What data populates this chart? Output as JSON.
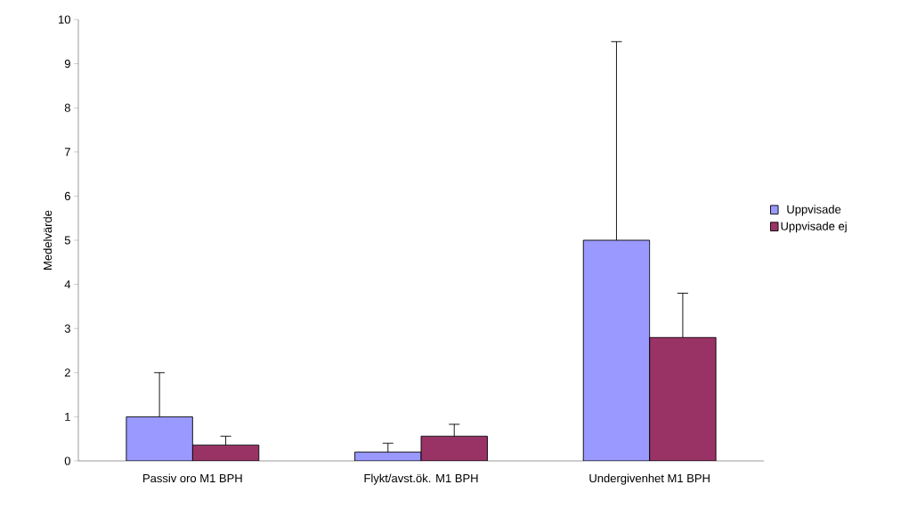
{
  "chart_data": {
    "type": "bar",
    "ylabel": "Medelvärde",
    "categories": [
      "Passiv oro M1 BPH",
      "Flykt/avst.ök. M1 BPH",
      "Undergivenhet M1 BPH"
    ],
    "series": [
      {
        "name": "Uppvisade",
        "color": "#9999ff",
        "values": [
          1.0,
          0.2,
          5.0
        ],
        "errors": [
          [
            1.0,
            2.0
          ],
          [
            0.2,
            0.4
          ],
          [
            5.0,
            9.5
          ]
        ]
      },
      {
        "name": "Uppvisade ej",
        "color": "#993366",
        "values": [
          0.36,
          0.56,
          2.8
        ],
        "errors": [
          [
            0.36,
            0.56
          ],
          [
            0.56,
            0.83
          ],
          [
            2.8,
            3.8
          ]
        ]
      }
    ],
    "ylim": [
      0,
      10
    ],
    "yticks": [
      0,
      1,
      2,
      3,
      4,
      5,
      6,
      7,
      8,
      9,
      10
    ],
    "grid": false,
    "legend": "right"
  }
}
